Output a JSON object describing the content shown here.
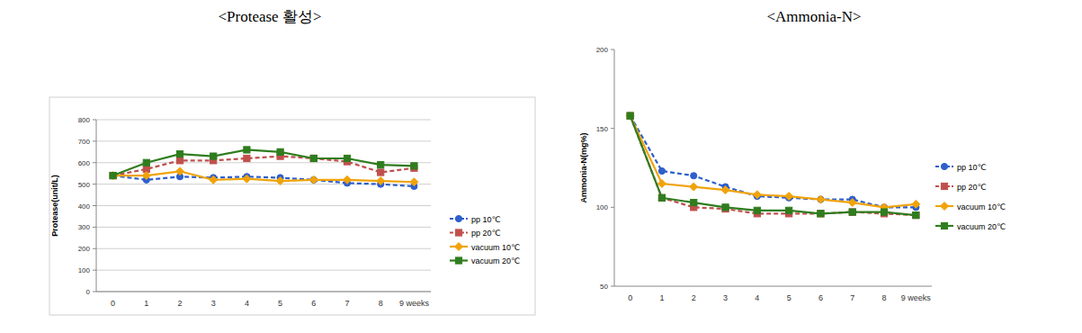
{
  "chart_data": [
    {
      "type": "line",
      "title": "<Protease 활성>",
      "y_label": "Protease(unit/L)",
      "categories": [
        "0",
        "1",
        "2",
        "3",
        "4",
        "5",
        "6",
        "7",
        "8",
        "9 weeks"
      ],
      "ylim": [
        0,
        800
      ],
      "yticks": [
        0,
        100,
        200,
        300,
        400,
        500,
        600,
        700,
        800
      ],
      "grid": true,
      "legend": "right",
      "series": [
        {
          "name": "pp 10℃",
          "color": "#2e5fcc",
          "marker": "circle",
          "line_style": "dashed",
          "values": [
            540,
            520,
            535,
            530,
            535,
            530,
            520,
            505,
            500,
            490
          ]
        },
        {
          "name": "pp 20℃",
          "color": "#c0504d",
          "marker": "square",
          "line_style": "dashed",
          "values": [
            540,
            570,
            610,
            610,
            620,
            630,
            620,
            605,
            555,
            575
          ]
        },
        {
          "name": "vacuum 10℃",
          "color": "#f0a30a",
          "marker": "diamond",
          "line_style": "solid",
          "values": [
            540,
            540,
            560,
            520,
            525,
            515,
            520,
            520,
            515,
            510
          ]
        },
        {
          "name": "vacuum 20℃",
          "color": "#2f7d1f",
          "marker": "square",
          "line_style": "solid",
          "values": [
            540,
            600,
            640,
            630,
            660,
            650,
            620,
            620,
            590,
            585
          ]
        }
      ]
    },
    {
      "type": "line",
      "title": "<Ammonia-N>",
      "y_label": "Ammonia-N(mg%)",
      "categories": [
        "0",
        "1",
        "2",
        "3",
        "4",
        "5",
        "6",
        "7",
        "8",
        "9 weeks"
      ],
      "ylim": [
        50,
        200
      ],
      "yticks": [
        50,
        100,
        150,
        200
      ],
      "grid": false,
      "legend": "right",
      "series": [
        {
          "name": "pp 10℃",
          "color": "#2e5fcc",
          "marker": "circle",
          "line_style": "dashed",
          "values": [
            158,
            123,
            120,
            113,
            107,
            106,
            105,
            105,
            100,
            100
          ]
        },
        {
          "name": "pp 20℃",
          "color": "#c0504d",
          "marker": "square",
          "line_style": "dashed",
          "values": [
            158,
            106,
            100,
            99,
            96,
            96,
            96,
            97,
            96,
            95
          ]
        },
        {
          "name": "vacuum 10℃",
          "color": "#f0a30a",
          "marker": "diamond",
          "line_style": "solid",
          "values": [
            158,
            115,
            113,
            111,
            108,
            107,
            105,
            103,
            100,
            102
          ]
        },
        {
          "name": "vacuum 20℃",
          "color": "#2f7d1f",
          "marker": "square",
          "line_style": "solid",
          "values": [
            158,
            106,
            103,
            100,
            98,
            98,
            96,
            97,
            97,
            95
          ]
        }
      ]
    }
  ]
}
